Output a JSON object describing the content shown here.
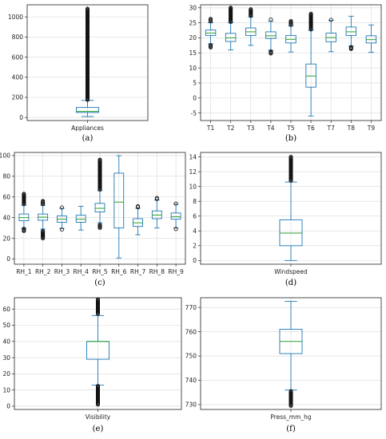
{
  "chart_data": [
    {
      "type": "box",
      "panel": "(a)",
      "categories": [
        "Appliances"
      ],
      "ylim": [
        -30,
        1120
      ],
      "yticks": [
        0,
        200,
        400,
        600,
        800,
        1000
      ],
      "grid": true,
      "boxes": [
        {
          "name": "Appliances",
          "whislo": 10,
          "q1": 50,
          "med": 60,
          "q3": 100,
          "whishi": 170,
          "fliers_from": 175,
          "fliers_to": 1080
        }
      ]
    },
    {
      "type": "box",
      "panel": "(b)",
      "categories": [
        "T1",
        "T2",
        "T3",
        "T4",
        "T5",
        "T6",
        "T7",
        "T8",
        "T9"
      ],
      "ylim": [
        -7.5,
        31
      ],
      "yticks": [
        -5,
        0,
        5,
        10,
        15,
        20,
        25,
        30
      ],
      "grid": true,
      "boxes": [
        {
          "name": "T1",
          "whislo": 18,
          "q1": 20.8,
          "med": 21.6,
          "q3": 22.6,
          "whishi": 25,
          "fliers_low": [
            16.8,
            17.6
          ],
          "fliers_high": [
            25.5,
            26.3
          ]
        },
        {
          "name": "T2",
          "whislo": 16,
          "q1": 18.8,
          "med": 20,
          "q3": 21.5,
          "whishi": 25,
          "fliers_low": [],
          "fliers_high": [
            25.3,
            30
          ]
        },
        {
          "name": "T3",
          "whislo": 17.5,
          "q1": 20.8,
          "med": 22,
          "q3": 23.3,
          "whishi": 27,
          "fliers_low": [],
          "fliers_high": [
            27.3,
            29.5
          ]
        },
        {
          "name": "T4",
          "whislo": 15.8,
          "q1": 19.8,
          "med": 20.7,
          "q3": 22,
          "whishi": 25.5,
          "fliers_low": [
            14.8,
            15.5
          ],
          "fliers_high": [
            26.1
          ]
        },
        {
          "name": "T5",
          "whislo": 15.3,
          "q1": 18.3,
          "med": 19.5,
          "q3": 20.8,
          "whishi": 24,
          "fliers_low": [],
          "fliers_high": [
            24.3,
            25.6
          ]
        },
        {
          "name": "T6",
          "whislo": -6,
          "q1": 3.6,
          "med": 7.3,
          "q3": 11.3,
          "whishi": 22.5,
          "fliers_low": [],
          "fliers_high": [
            22.8,
            28
          ]
        },
        {
          "name": "T7",
          "whislo": 15.4,
          "q1": 18.7,
          "med": 20.1,
          "q3": 21.6,
          "whishi": 25.8,
          "fliers_low": [],
          "fliers_high": [
            26
          ]
        },
        {
          "name": "T8",
          "whislo": 17.3,
          "q1": 20.8,
          "med": 22,
          "q3": 23.6,
          "whishi": 27.2,
          "fliers_low": [
            16.3,
            16.9
          ],
          "fliers_high": []
        },
        {
          "name": "T9",
          "whislo": 15.2,
          "q1": 18.3,
          "med": 19.4,
          "q3": 20.7,
          "whishi": 24.3,
          "fliers_low": [],
          "fliers_high": []
        }
      ]
    },
    {
      "type": "box",
      "panel": "(c)",
      "categories": [
        "RH_1",
        "RH_2",
        "RH_3",
        "RH_4",
        "RH_5",
        "RH_6",
        "RH_7",
        "RH_8",
        "RH_9"
      ],
      "ylim": [
        -5,
        103
      ],
      "yticks": [
        0,
        20,
        40,
        60,
        80,
        100
      ],
      "grid": true,
      "boxes": [
        {
          "name": "RH_1",
          "whislo": 30,
          "q1": 37,
          "med": 40,
          "q3": 43.5,
          "whishi": 52,
          "fliers_low": [
            27,
            29
          ],
          "fliers_high": [
            53,
            63
          ]
        },
        {
          "name": "RH_2",
          "whislo": 29,
          "q1": 37.5,
          "med": 40.5,
          "q3": 43.5,
          "whishi": 52,
          "fliers_low": [
            20,
            27
          ],
          "fliers_high": [
            53,
            56
          ]
        },
        {
          "name": "RH_3",
          "whislo": 29.5,
          "q1": 35.5,
          "med": 38.5,
          "q3": 41.7,
          "whishi": 49,
          "fliers_low": [
            28.5
          ],
          "fliers_high": [
            49.8
          ]
        },
        {
          "name": "RH_4",
          "whislo": 28,
          "q1": 35.5,
          "med": 38.5,
          "q3": 42.3,
          "whishi": 51,
          "fliers_low": [],
          "fliers_high": []
        },
        {
          "name": "RH_5",
          "whislo": 35,
          "q1": 45.5,
          "med": 49,
          "q3": 53.8,
          "whishi": 66,
          "fliers_low": [
            30,
            33
          ],
          "fliers_high": [
            67,
            96
          ]
        },
        {
          "name": "RH_6",
          "whislo": 1,
          "q1": 30,
          "med": 55,
          "q3": 83,
          "whishi": 99.9,
          "fliers_low": [],
          "fliers_high": []
        },
        {
          "name": "RH_7",
          "whislo": 23.5,
          "q1": 31.5,
          "med": 35,
          "q3": 39,
          "whishi": 49,
          "fliers_low": [],
          "fliers_high": [
            50,
            51
          ]
        },
        {
          "name": "RH_8",
          "whislo": 30,
          "q1": 39,
          "med": 42.5,
          "q3": 46.5,
          "whishi": 57,
          "fliers_low": [],
          "fliers_high": [
            58,
            59
          ]
        },
        {
          "name": "RH_9",
          "whislo": 30,
          "q1": 38.5,
          "med": 41,
          "q3": 44.5,
          "whishi": 53,
          "fliers_low": [
            29
          ],
          "fliers_high": [
            53.5
          ]
        }
      ]
    },
    {
      "type": "box",
      "panel": "(d)",
      "categories": [
        "Windspeed"
      ],
      "ylim": [
        -0.5,
        14.6
      ],
      "yticks": [
        0,
        2,
        4,
        6,
        8,
        10,
        12,
        14
      ],
      "grid": true,
      "boxes": [
        {
          "name": "Windspeed",
          "whislo": 0,
          "q1": 2,
          "med": 3.7,
          "q3": 5.5,
          "whishi": 10.6,
          "fliers_from": 10.8,
          "fliers_to": 14
        }
      ]
    },
    {
      "type": "box",
      "panel": "(e)",
      "categories": [
        "Visibility"
      ],
      "ylim": [
        -2,
        67
      ],
      "yticks": [
        0,
        10,
        20,
        30,
        40,
        50,
        60
      ],
      "grid": true,
      "boxes": [
        {
          "name": "Visibility",
          "whislo": 13,
          "q1": 29,
          "med": 40,
          "q3": 40,
          "whishi": 56,
          "fliers_low_from": 1,
          "fliers_low_to": 12.5,
          "fliers_high_from": 57,
          "fliers_high_to": 66
        }
      ]
    },
    {
      "type": "box",
      "panel": "(f)",
      "categories": [
        "Press_mm_hg"
      ],
      "ylim": [
        728,
        774
      ],
      "yticks": [
        730,
        740,
        750,
        760,
        770
      ],
      "grid": true,
      "boxes": [
        {
          "name": "Press_mm_hg",
          "whislo": 736,
          "q1": 751,
          "med": 756,
          "q3": 761,
          "whishi": 772.5,
          "fliers_low_from": 729.5,
          "fliers_low_to": 735.5
        }
      ]
    }
  ]
}
